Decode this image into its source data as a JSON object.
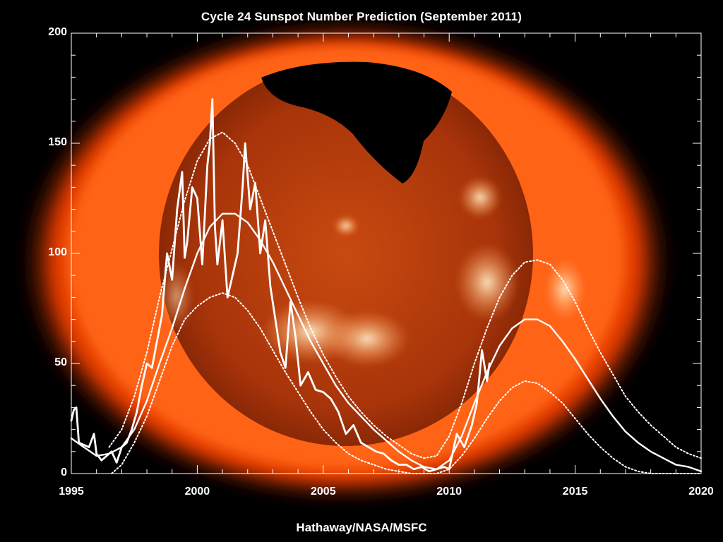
{
  "colors": {
    "background": "#000000",
    "corona": "#ff5a10",
    "disk": "#b83a08",
    "bright_regions": "#ffd9a8",
    "lines": "#ffffff"
  },
  "chart_data": {
    "type": "line",
    "title": "Cycle 24 Sunspot Number Prediction (September 2011)",
    "credit": "Hathaway/NASA/MSFC",
    "background_image": "x-ray image of the sun (corona)",
    "xlabel": "",
    "ylabel": "",
    "xlim": [
      1995,
      2020
    ],
    "ylim": [
      0,
      200
    ],
    "x_ticks": [
      "1995",
      "2000",
      "2005",
      "2010",
      "2015",
      "2020"
    ],
    "y_ticks": [
      "0",
      "50",
      "100",
      "150",
      "200"
    ],
    "grid": false,
    "series": [
      {
        "style": "solid-thick",
        "description": "monthly sunspot numbers",
        "x": [
          1995.0,
          1995.1,
          1995.2,
          1995.3,
          1995.5,
          1995.7,
          1995.9,
          1996.0,
          1996.2,
          1996.4,
          1996.6,
          1996.8,
          1997.0,
          1997.2,
          1997.4,
          1997.6,
          1997.8,
          1998.0,
          1998.2,
          1998.4,
          1998.6,
          1998.8,
          1999.0,
          1999.2,
          1999.4,
          1999.5,
          1999.6,
          1999.8,
          2000.0,
          2000.2,
          2000.4,
          2000.5,
          2000.6,
          2000.7,
          2000.8,
          2001.0,
          2001.2,
          2001.4,
          2001.6,
          2001.8,
          2001.9,
          2002.1,
          2002.3,
          2002.5,
          2002.7,
          2002.9,
          2003.1,
          2003.3,
          2003.5,
          2003.7,
          2003.9,
          2004.1,
          2004.4,
          2004.7,
          2005.0,
          2005.3,
          2005.6,
          2005.9,
          2006.2,
          2006.5,
          2006.8,
          2007.1,
          2007.4,
          2007.7,
          2008.0,
          2008.3,
          2008.6,
          2008.9,
          2009.2,
          2009.5,
          2009.8,
          2010.0,
          2010.3,
          2010.6,
          2010.9,
          2011.1,
          2011.3,
          2011.5,
          2011.6
        ],
        "y": [
          24,
          29,
          30,
          14,
          13,
          12,
          18,
          9,
          6,
          8,
          10,
          5,
          12,
          14,
          20,
          28,
          40,
          50,
          48,
          60,
          72,
          100,
          88,
          120,
          137,
          98,
          105,
          130,
          125,
          95,
          140,
          150,
          170,
          112,
          95,
          115,
          80,
          90,
          100,
          130,
          150,
          120,
          132,
          100,
          115,
          85,
          70,
          55,
          48,
          78,
          62,
          40,
          46,
          38,
          37,
          34,
          28,
          18,
          22,
          14,
          12,
          10,
          9,
          6,
          4,
          4,
          2,
          3,
          1,
          2,
          3,
          2,
          18,
          12,
          22,
          32,
          56,
          42,
          50
        ]
      },
      {
        "style": "solid",
        "description": "smoothed sunspot number and prediction",
        "x": [
          1995.0,
          1995.5,
          1996.0,
          1996.5,
          1997.0,
          1997.5,
          1998.0,
          1998.5,
          1999.0,
          1999.5,
          2000.0,
          2000.5,
          2001.0,
          2001.5,
          2002.0,
          2002.5,
          2003.0,
          2003.5,
          2004.0,
          2004.5,
          2005.0,
          2005.5,
          2006.0,
          2006.5,
          2007.0,
          2007.5,
          2008.0,
          2008.5,
          2009.0,
          2009.5,
          2010.0,
          2010.5,
          2011.0,
          2011.5,
          2012.0,
          2012.5,
          2013.0,
          2013.5,
          2014.0,
          2014.5,
          2015.0,
          2015.5,
          2016.0,
          2016.5,
          2017.0,
          2017.5,
          2018.0,
          2018.5,
          2019.0,
          2019.5,
          2020.0
        ],
        "y": [
          16,
          12,
          8,
          9,
          12,
          20,
          33,
          50,
          66,
          84,
          100,
          112,
          118,
          118,
          114,
          106,
          96,
          84,
          72,
          60,
          50,
          40,
          32,
          26,
          20,
          15,
          10,
          6,
          3,
          2,
          6,
          17,
          32,
          46,
          58,
          66,
          70,
          70,
          67,
          60,
          52,
          43,
          34,
          26,
          19,
          14,
          10,
          7,
          4,
          3,
          1
        ]
      },
      {
        "style": "dotted",
        "description": "upper bound",
        "x": [
          1996.5,
          1997.0,
          1997.5,
          1998.0,
          1998.5,
          1999.0,
          1999.5,
          2000.0,
          2000.5,
          2001.0,
          2001.5,
          2002.0,
          2002.5,
          2003.0,
          2003.5,
          2004.0,
          2004.5,
          2005.0,
          2005.5,
          2006.0,
          2006.5,
          2007.0,
          2007.5,
          2008.0,
          2008.5,
          2009.0,
          2009.5,
          2010.0,
          2010.5,
          2011.0,
          2011.5,
          2012.0,
          2012.5,
          2013.0,
          2013.5,
          2014.0,
          2014.5,
          2015.0,
          2015.5,
          2016.0,
          2016.5,
          2017.0,
          2017.5,
          2018.0,
          2018.5,
          2019.0,
          2019.5,
          2020.0
        ],
        "y": [
          12,
          20,
          35,
          55,
          80,
          102,
          124,
          142,
          152,
          155,
          150,
          140,
          125,
          110,
          95,
          80,
          66,
          54,
          44,
          35,
          28,
          22,
          17,
          13,
          9,
          7,
          8,
          17,
          32,
          50,
          66,
          80,
          90,
          96,
          97,
          95,
          88,
          78,
          66,
          55,
          45,
          35,
          28,
          22,
          17,
          12,
          9,
          7
        ]
      },
      {
        "style": "dotted",
        "description": "lower bound",
        "x": [
          1996.6,
          1997.0,
          1997.5,
          1998.0,
          1998.5,
          1999.0,
          1999.5,
          2000.0,
          2000.5,
          2001.0,
          2001.5,
          2002.0,
          2002.5,
          2003.0,
          2003.5,
          2004.0,
          2004.5,
          2005.0,
          2005.5,
          2006.0,
          2006.5,
          2007.0,
          2007.5,
          2008.0,
          2008.5,
          2009.0,
          2009.5,
          2010.0,
          2010.5,
          2011.0,
          2011.5,
          2012.0,
          2012.5,
          2013.0,
          2013.5,
          2014.0,
          2014.5,
          2015.0,
          2015.5,
          2016.0,
          2016.5,
          2017.0,
          2017.5,
          2018.0,
          2018.5,
          2019.0,
          2019.5,
          2020.0
        ],
        "y": [
          0,
          4,
          14,
          26,
          42,
          58,
          70,
          76,
          80,
          82,
          80,
          74,
          66,
          56,
          46,
          37,
          28,
          20,
          14,
          9,
          6,
          4,
          2,
          1,
          0,
          0,
          0,
          2,
          8,
          16,
          25,
          33,
          39,
          42,
          41,
          37,
          32,
          25,
          18,
          12,
          7,
          3,
          1,
          0,
          0,
          0,
          0,
          0
        ]
      }
    ]
  }
}
